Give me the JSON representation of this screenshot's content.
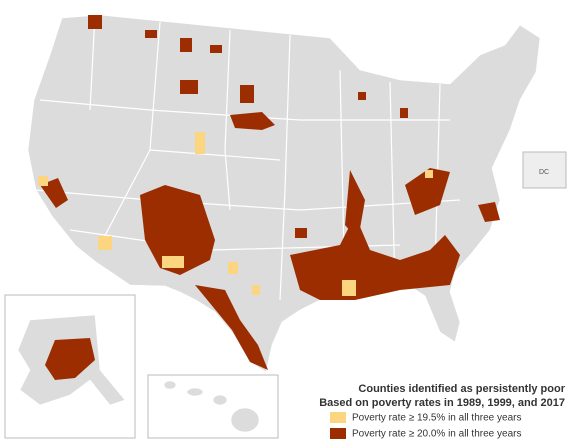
{
  "legend": {
    "title": [
      "Counties identified as persistently poor",
      "Based on poverty rates in 1989, 1999, and 2017"
    ],
    "items": [
      {
        "label": "Poverty rate ≥ 19.5% in all three years",
        "color": "#fcd581"
      },
      {
        "label": "Poverty rate ≥ 20.0% in all three years",
        "color": "#9c2d00"
      }
    ]
  },
  "inset": {
    "dc": "DC"
  }
}
